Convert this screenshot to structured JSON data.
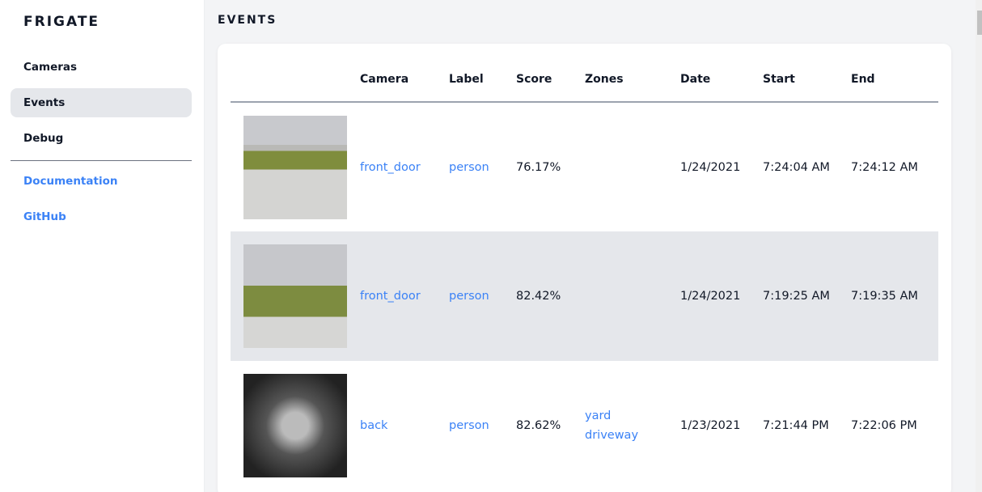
{
  "sidebar": {
    "logo": "FRIGATE",
    "items": [
      {
        "label": "Cameras"
      },
      {
        "label": "Events"
      },
      {
        "label": "Debug"
      }
    ],
    "links": [
      {
        "label": "Documentation"
      },
      {
        "label": "GitHub"
      }
    ]
  },
  "main": {
    "title": "EVENTS",
    "columns": [
      "",
      "Camera",
      "Label",
      "Score",
      "Zones",
      "Date",
      "Start",
      "End"
    ],
    "rows": [
      {
        "camera": "front_door",
        "label": "person",
        "score": "76.17%",
        "zones": [
          "",
          ""
        ],
        "date": "1/24/2021",
        "start": "7:24:04 AM",
        "end": "7:24:12 AM"
      },
      {
        "camera": "front_door",
        "label": "person",
        "score": "82.42%",
        "zones": [
          "",
          ""
        ],
        "date": "1/24/2021",
        "start": "7:19:25 AM",
        "end": "7:19:35 AM"
      },
      {
        "camera": "back",
        "label": "person",
        "score": "82.62%",
        "zones": [
          "yard",
          "driveway"
        ],
        "date": "1/23/2021",
        "start": "7:21:44 PM",
        "end": "7:22:06 PM"
      }
    ]
  }
}
